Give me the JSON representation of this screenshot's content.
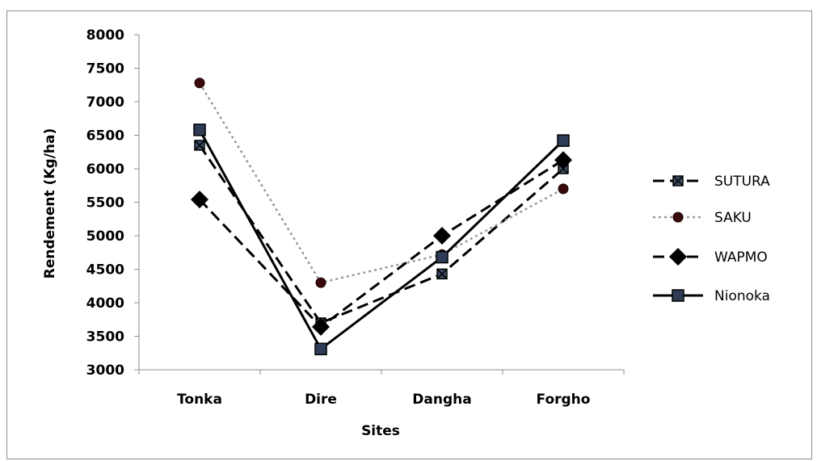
{
  "chart_data": {
    "type": "line",
    "title": "",
    "xlabel": "Sites",
    "ylabel": "Rendement (Kg/ha)",
    "categories": [
      "Tonka",
      "Dire",
      "Dangha",
      "Forgho"
    ],
    "ylim": [
      3000,
      8000
    ],
    "yticks": [
      3000,
      3500,
      4000,
      4500,
      5000,
      5500,
      6000,
      6500,
      7000,
      7500,
      8000
    ],
    "grid": false,
    "legend": "right",
    "series": [
      {
        "name": "SUTURA",
        "values": [
          6350,
          3700,
          4430,
          6000
        ],
        "color": "#000000",
        "line": "dashed",
        "marker": "square-x"
      },
      {
        "name": "SAKU",
        "values": [
          7280,
          4300,
          4720,
          5700
        ],
        "color": "#999999",
        "line": "dotted",
        "marker": "circle"
      },
      {
        "name": "WAPMO",
        "values": [
          5540,
          3640,
          5000,
          6130
        ],
        "color": "#000000",
        "line": "dashed",
        "marker": "diamond"
      },
      {
        "name": "Nionoka",
        "values": [
          6580,
          3310,
          4680,
          6420
        ],
        "color": "#000000",
        "line": "solid",
        "marker": "square"
      }
    ]
  }
}
